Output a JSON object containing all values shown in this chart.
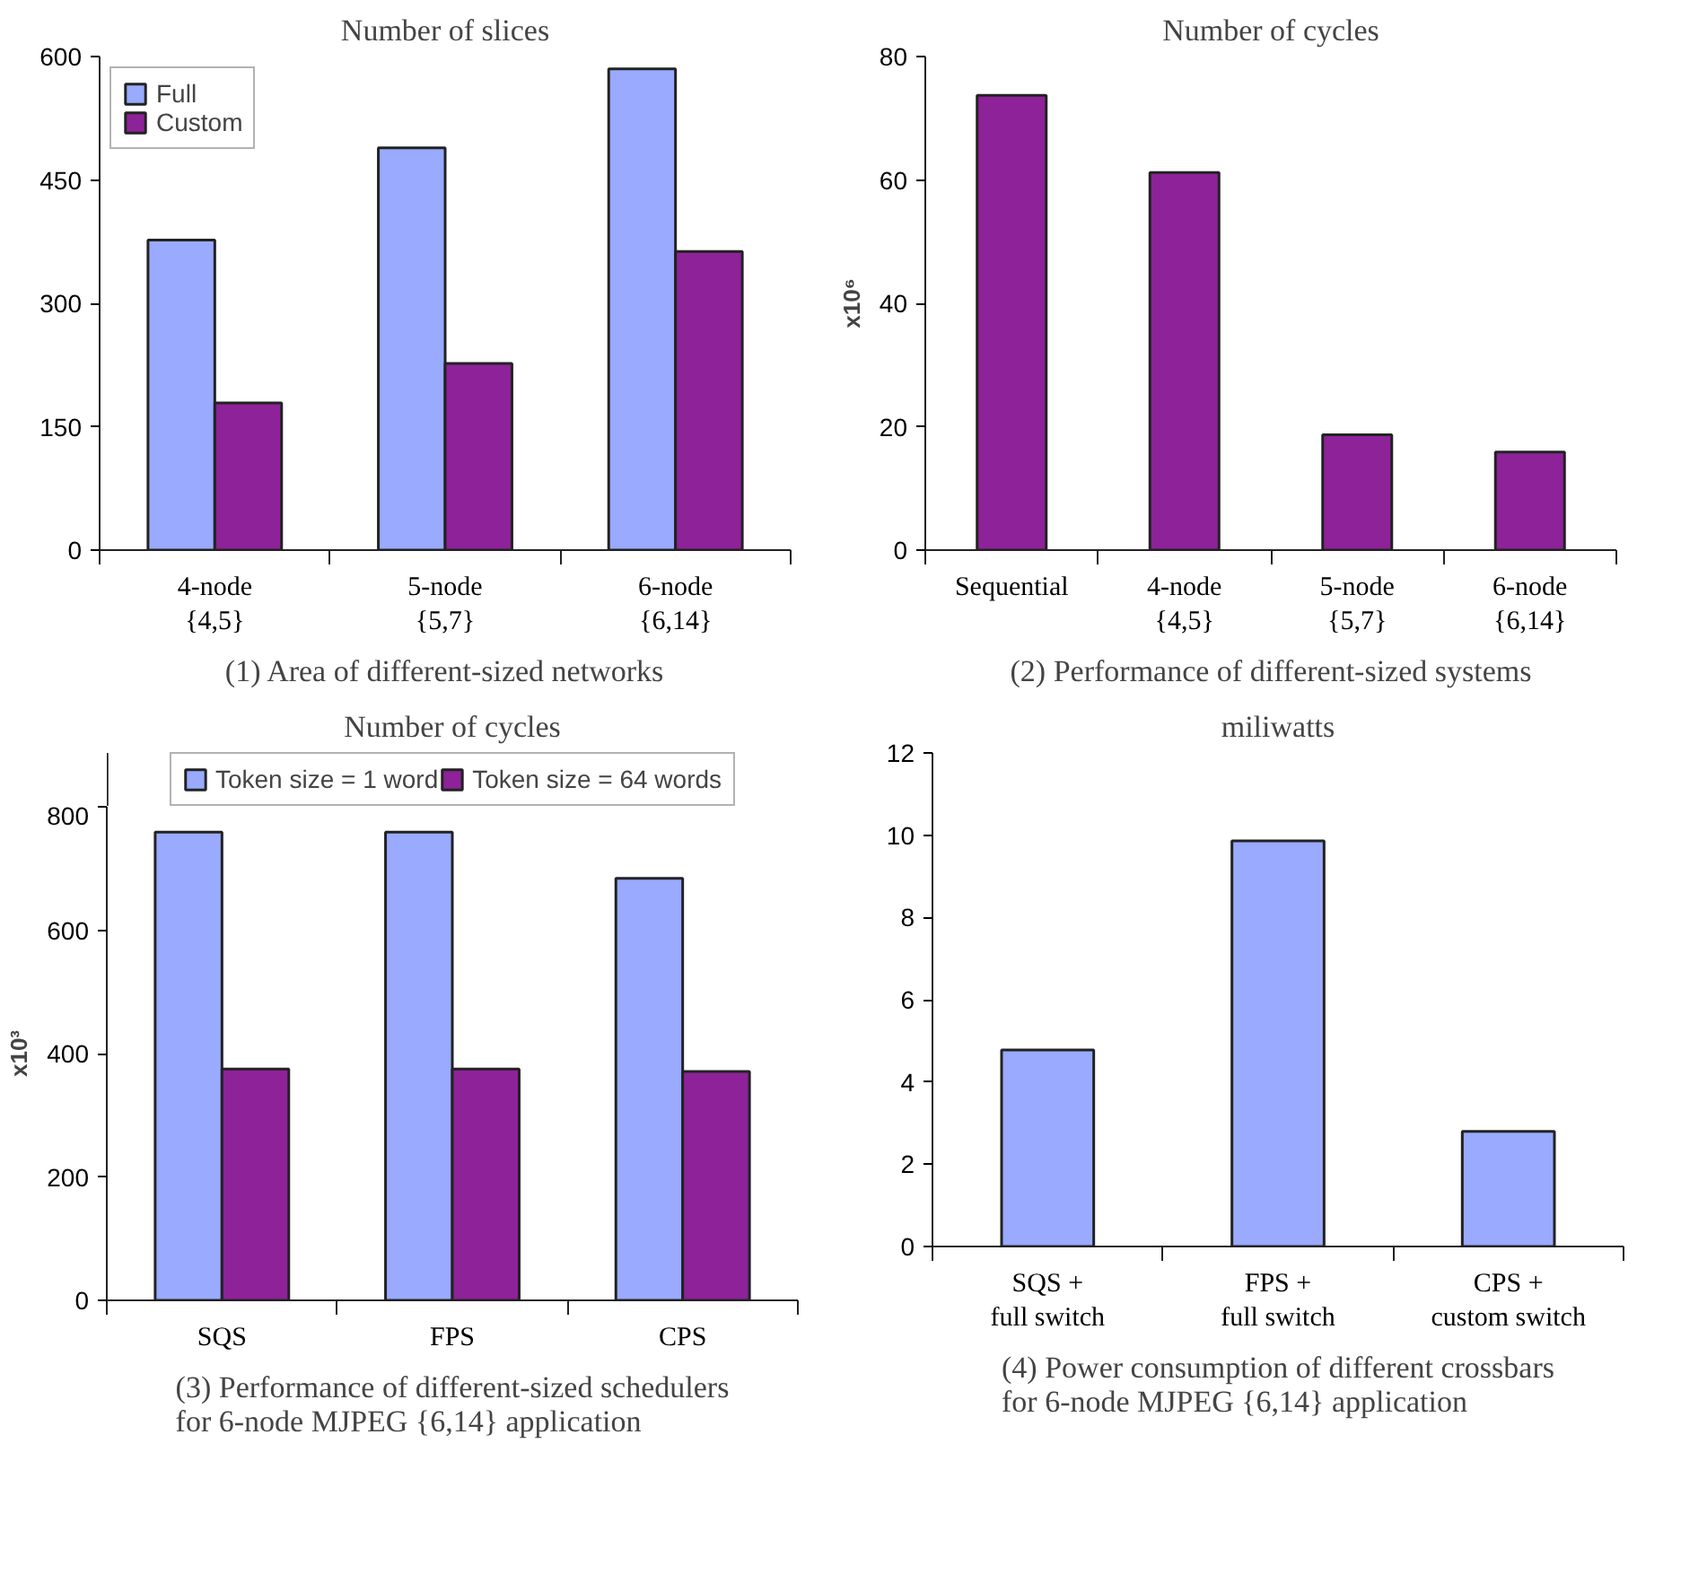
{
  "chart_data": [
    {
      "type": "bar",
      "title": "Number of slices",
      "annotations": [
        "(1) Area of different-sized networks"
      ],
      "categories": [
        "4-node\n{4,5}",
        "5-node\n{5,7}",
        "6-node\n{6,14}"
      ],
      "series": [
        {
          "name": "Full",
          "color": "#99aaff",
          "values": [
            377,
            489,
            585
          ]
        },
        {
          "name": "Custom",
          "color": "#8e2299",
          "values": [
            179,
            227,
            363
          ]
        }
      ],
      "ylim": [
        0,
        600
      ],
      "yticks": [
        0,
        150,
        300,
        450,
        600
      ],
      "grid": false,
      "legend": "top left"
    },
    {
      "type": "bar",
      "title": "Number of cycles",
      "ylabel": "x10⁶",
      "annotations": [
        "(2) Performance of different-sized systems"
      ],
      "categories": [
        "Sequential",
        "4-node\n{4,5}",
        "5-node\n{5,7}",
        "6-node\n{6,14}"
      ],
      "series": [
        {
          "color": "#8e2299",
          "values": [
            73.7,
            61.2,
            18.7,
            15.9
          ]
        }
      ],
      "ylim": [
        0,
        80
      ],
      "yticks": [
        0,
        20,
        40,
        60,
        80
      ],
      "grid": false,
      "legend": false
    },
    {
      "type": "bar",
      "title": "Number of cycles",
      "ylabel": "x10³",
      "annotations": [
        "(3) Performance of different-sized schedulers\nfor 6-node MJPEG {6,14} application"
      ],
      "categories": [
        "SQS",
        "FPS",
        "CPS"
      ],
      "series": [
        {
          "name": "Token size = 1 word",
          "color": "#99aaff",
          "values": [
            759,
            759,
            684
          ]
        },
        {
          "name": "Token size = 64 words",
          "color": "#8e2299",
          "values": [
            375,
            375,
            371
          ]
        }
      ],
      "ylim": [
        0,
        800
      ],
      "yticks": [
        0,
        200,
        400,
        600,
        800
      ],
      "grid": false,
      "legend": "top"
    },
    {
      "type": "bar",
      "title": "miliwatts",
      "annotations": [
        "(4) Power consumption of different crossbars\nfor 6-node MJPEG {6,14} application"
      ],
      "categories": [
        "SQS +\nfull switch",
        "FPS +\nfull switch",
        "CPS +\ncustom switch"
      ],
      "series": [
        {
          "color": "#99aaff",
          "values": [
            4.78,
            9.86,
            2.8
          ]
        }
      ],
      "ylim": [
        0,
        12
      ],
      "yticks": [
        0,
        2,
        4,
        6,
        8,
        10,
        12
      ],
      "grid": false,
      "legend": false
    }
  ]
}
